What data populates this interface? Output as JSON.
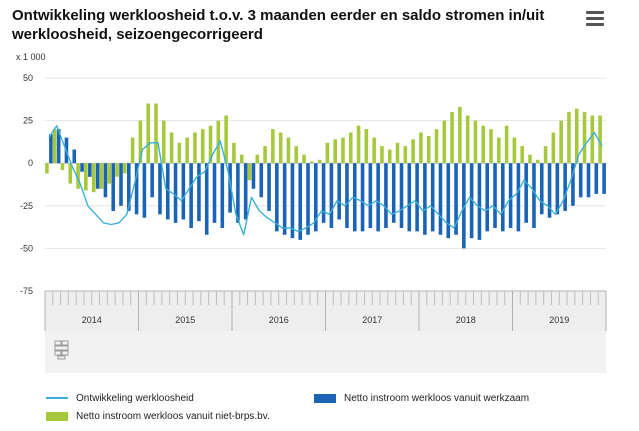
{
  "header": {
    "title": "Ontwikkeling werkloosheid t.o.v. 3 maanden eerder en saldo stromen in/uit werkloosheid, seizoengecorrigeerd",
    "menu_icon": "hamburger-menu-icon"
  },
  "colors": {
    "line": "#3ab0d8",
    "bar_werkzaam": "#1b63b5",
    "bar_niet_brps": "#a6c83c",
    "axis_band": "#eeeeee",
    "grid": "#e4e4e4"
  },
  "chart_data": {
    "type": "bar",
    "unit_label": "x 1 000",
    "ylim": [
      -75,
      50
    ],
    "yticks": [
      50,
      25,
      0,
      -25,
      -50,
      -75
    ],
    "grid": true,
    "legend_position": "bottom",
    "year_labels": [
      "2014",
      "2015",
      "2016",
      "2017",
      "2018",
      "2019"
    ],
    "months_per_year": 12,
    "series": [
      {
        "name": "Netto instroom werkloos vanuit werkzaam",
        "kind": "bar",
        "values": [
          17,
          20,
          15,
          8,
          -5,
          -8,
          -15,
          -20,
          -28,
          -25,
          -28,
          -30,
          -32,
          -20,
          -30,
          -33,
          -35,
          -33,
          -38,
          -34,
          -42,
          -35,
          -38,
          -29,
          -35,
          -33,
          -15,
          -20,
          -28,
          -40,
          -42,
          -44,
          -45,
          -42,
          -40,
          -35,
          -38,
          -33,
          -38,
          -40,
          -40,
          -38,
          -40,
          -38,
          -35,
          -38,
          -40,
          -40,
          -42,
          -40,
          -42,
          -44,
          -42,
          -50,
          -44,
          -45,
          -40,
          -38,
          -40,
          -38,
          -40,
          -35,
          -38,
          -30,
          -32,
          -30,
          -28,
          -25,
          -20,
          -20,
          -18,
          -18
        ]
      },
      {
        "name": "Netto instroom werkloos vanuit niet-brps.bv.",
        "kind": "bar",
        "values": [
          -6,
          20,
          -4,
          -12,
          -15,
          -16,
          -17,
          -15,
          -12,
          -8,
          -6,
          15,
          25,
          35,
          35,
          25,
          18,
          12,
          15,
          18,
          20,
          22,
          25,
          28,
          12,
          5,
          -10,
          5,
          10,
          20,
          18,
          15,
          10,
          5,
          1,
          2,
          12,
          14,
          15,
          18,
          22,
          20,
          15,
          10,
          8,
          12,
          10,
          14,
          18,
          16,
          20,
          25,
          30,
          33,
          28,
          25,
          22,
          20,
          15,
          22,
          15,
          10,
          5,
          2,
          10,
          18,
          25,
          30,
          32,
          30,
          28,
          28
        ]
      },
      {
        "name": "Ontwikkeling werkloosheid",
        "kind": "line",
        "values": [
          15,
          22,
          10,
          -2,
          -12,
          -25,
          -30,
          -35,
          -36,
          -35,
          -30,
          -12,
          8,
          12,
          12,
          -15,
          -18,
          -22,
          -15,
          -8,
          -5,
          5,
          13,
          -5,
          -30,
          -42,
          -20,
          -28,
          -32,
          -35,
          -38,
          -38,
          -40,
          -38,
          -35,
          -28,
          -30,
          -22,
          -25,
          -20,
          -22,
          -25,
          -22,
          -25,
          -30,
          -28,
          -25,
          -22,
          -28,
          -25,
          -30,
          -35,
          -38,
          -28,
          -20,
          -25,
          -28,
          -25,
          -30,
          -22,
          -18,
          -10,
          -15,
          -22,
          -25,
          -30,
          -22,
          -10,
          5,
          12,
          18,
          10
        ]
      }
    ]
  }
}
